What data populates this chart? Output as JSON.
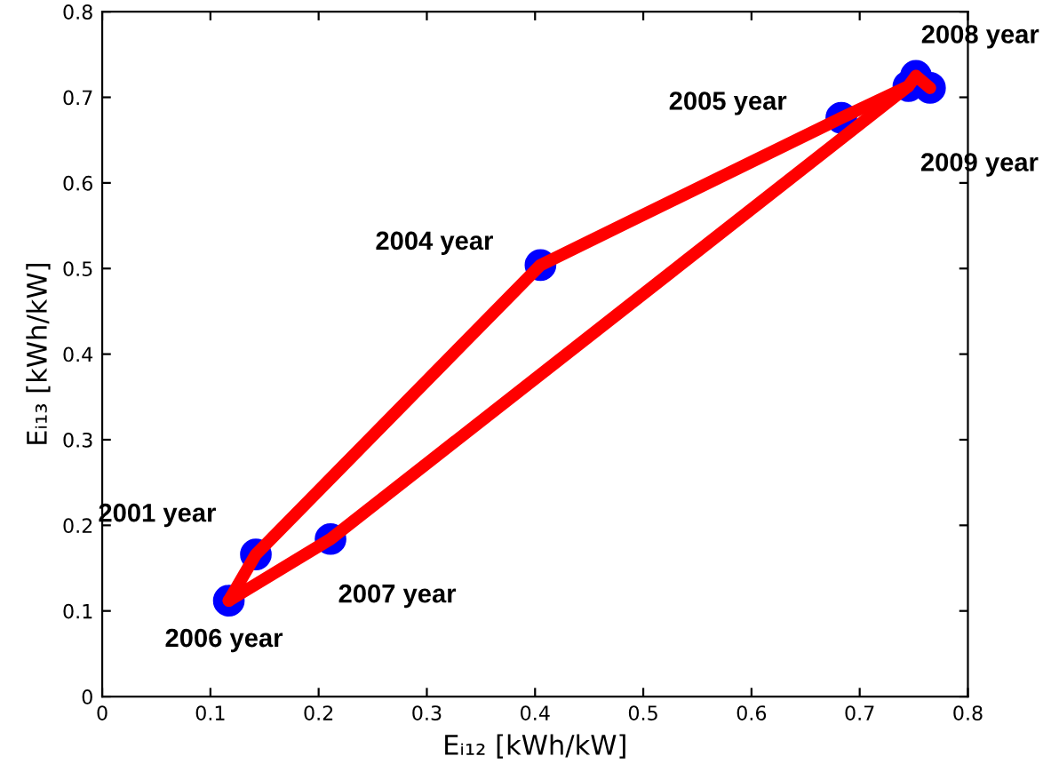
{
  "chart_data": {
    "type": "line",
    "xlabel": "Eᵢ₁₂ [kWh/kW]",
    "ylabel": "Eᵢ₁₃ [kWh/kW]",
    "xlim": [
      0,
      0.8
    ],
    "ylim": [
      0,
      0.8
    ],
    "xticks": [
      0,
      0.1,
      0.2,
      0.3,
      0.4,
      0.5,
      0.6,
      0.7,
      0.8
    ],
    "yticks": [
      0,
      0.1,
      0.2,
      0.3,
      0.4,
      0.5,
      0.6,
      0.7,
      0.8
    ],
    "grid": false,
    "legend": false,
    "series": [
      {
        "color": "#ff0000",
        "x": [
          0.117,
          0.142,
          0.405,
          0.683,
          0.745,
          0.752,
          0.765
        ],
        "values": [
          0.112,
          0.166,
          0.504,
          0.676,
          0.713,
          0.725,
          0.711
        ]
      },
      {
        "color": "#ff0000",
        "x": [
          0.117,
          0.211,
          0.745
        ],
        "values": [
          0.112,
          0.184,
          0.713
        ]
      },
      {
        "type": "scatter",
        "color": "#0000ff",
        "marker": "circle",
        "x": [
          0.142,
          0.405,
          0.683,
          0.745,
          0.752,
          0.765,
          0.211,
          0.117
        ],
        "values": [
          0.166,
          0.504,
          0.676,
          0.713,
          0.725,
          0.711,
          0.184,
          0.112
        ]
      }
    ],
    "annotations": [
      {
        "text": "2001 year",
        "x": 0.142,
        "y": 0.166
      },
      {
        "text": "2004 year",
        "x": 0.405,
        "y": 0.504
      },
      {
        "text": "2005 year",
        "x": 0.683,
        "y": 0.676
      },
      {
        "text": "2008 year",
        "x": 0.752,
        "y": 0.725
      },
      {
        "text": "2009 year",
        "x": 0.765,
        "y": 0.711
      },
      {
        "text": "2007 year",
        "x": 0.211,
        "y": 0.184
      },
      {
        "text": "2006 year",
        "x": 0.117,
        "y": 0.112
      }
    ]
  }
}
